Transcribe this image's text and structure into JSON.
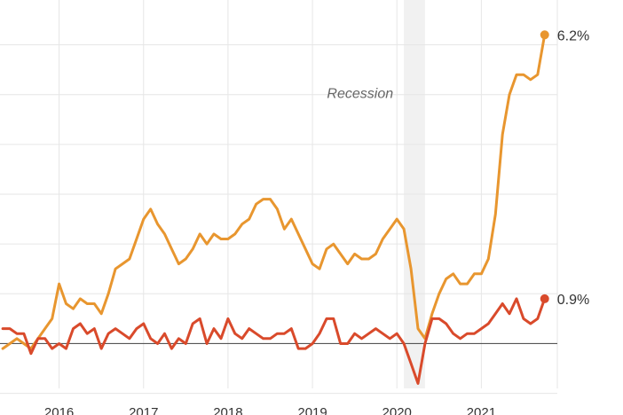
{
  "chart_data": {
    "type": "line",
    "title": "",
    "xlabel": "",
    "ylabel": "",
    "xlim": [
      2015.3,
      2021.9
    ],
    "ylim": [
      -0.9,
      6.9
    ],
    "x_ticks": [
      {
        "value": 2016,
        "label": "2016"
      },
      {
        "value": 2017,
        "label": "2017"
      },
      {
        "value": 2018,
        "label": "2018"
      },
      {
        "value": 2019,
        "label": "2019"
      },
      {
        "value": 2020,
        "label": "2020"
      },
      {
        "value": 2021,
        "label": "2021"
      }
    ],
    "grid": true,
    "baseline": 0,
    "recession": {
      "label": "Recession",
      "start": 2020.083,
      "end": 2020.333,
      "color": "#f1f1f1"
    },
    "series": [
      {
        "color": "#e8962f",
        "end_label": "6.2%",
        "points": [
          [
            2015.333,
            -0.1
          ],
          [
            2015.417,
            0.0
          ],
          [
            2015.5,
            0.1
          ],
          [
            2015.583,
            0.0
          ],
          [
            2015.667,
            -0.1
          ],
          [
            2015.75,
            0.1
          ],
          [
            2015.833,
            0.3
          ],
          [
            2015.917,
            0.5
          ],
          [
            2016.0,
            1.2
          ],
          [
            2016.083,
            0.8
          ],
          [
            2016.167,
            0.7
          ],
          [
            2016.25,
            0.9
          ],
          [
            2016.333,
            0.8
          ],
          [
            2016.417,
            0.8
          ],
          [
            2016.5,
            0.6
          ],
          [
            2016.583,
            1.0
          ],
          [
            2016.667,
            1.5
          ],
          [
            2016.75,
            1.6
          ],
          [
            2016.833,
            1.7
          ],
          [
            2016.917,
            2.1
          ],
          [
            2017.0,
            2.5
          ],
          [
            2017.083,
            2.7
          ],
          [
            2017.167,
            2.4
          ],
          [
            2017.25,
            2.2
          ],
          [
            2017.333,
            1.9
          ],
          [
            2017.417,
            1.6
          ],
          [
            2017.5,
            1.7
          ],
          [
            2017.583,
            1.9
          ],
          [
            2017.667,
            2.2
          ],
          [
            2017.75,
            2.0
          ],
          [
            2017.833,
            2.2
          ],
          [
            2017.917,
            2.1
          ],
          [
            2018.0,
            2.1
          ],
          [
            2018.083,
            2.2
          ],
          [
            2018.167,
            2.4
          ],
          [
            2018.25,
            2.5
          ],
          [
            2018.333,
            2.8
          ],
          [
            2018.417,
            2.9
          ],
          [
            2018.5,
            2.9
          ],
          [
            2018.583,
            2.7
          ],
          [
            2018.667,
            2.3
          ],
          [
            2018.75,
            2.5
          ],
          [
            2018.833,
            2.2
          ],
          [
            2018.917,
            1.9
          ],
          [
            2019.0,
            1.6
          ],
          [
            2019.083,
            1.5
          ],
          [
            2019.167,
            1.9
          ],
          [
            2019.25,
            2.0
          ],
          [
            2019.333,
            1.8
          ],
          [
            2019.417,
            1.6
          ],
          [
            2019.5,
            1.8
          ],
          [
            2019.583,
            1.7
          ],
          [
            2019.667,
            1.7
          ],
          [
            2019.75,
            1.8
          ],
          [
            2019.833,
            2.1
          ],
          [
            2019.917,
            2.3
          ],
          [
            2020.0,
            2.5
          ],
          [
            2020.083,
            2.3
          ],
          [
            2020.167,
            1.5
          ],
          [
            2020.25,
            0.3
          ],
          [
            2020.333,
            0.1
          ],
          [
            2020.417,
            0.6
          ],
          [
            2020.5,
            1.0
          ],
          [
            2020.583,
            1.3
          ],
          [
            2020.667,
            1.4
          ],
          [
            2020.75,
            1.2
          ],
          [
            2020.833,
            1.2
          ],
          [
            2020.917,
            1.4
          ],
          [
            2021.0,
            1.4
          ],
          [
            2021.083,
            1.7
          ],
          [
            2021.167,
            2.6
          ],
          [
            2021.25,
            4.2
          ],
          [
            2021.333,
            5.0
          ],
          [
            2021.417,
            5.4
          ],
          [
            2021.5,
            5.4
          ],
          [
            2021.583,
            5.3
          ],
          [
            2021.667,
            5.4
          ],
          [
            2021.75,
            6.2
          ]
        ]
      },
      {
        "color": "#d94a2b",
        "end_label": "0.9%",
        "points": [
          [
            2015.333,
            0.3
          ],
          [
            2015.417,
            0.3
          ],
          [
            2015.5,
            0.2
          ],
          [
            2015.583,
            0.2
          ],
          [
            2015.667,
            -0.2
          ],
          [
            2015.75,
            0.1
          ],
          [
            2015.833,
            0.1
          ],
          [
            2015.917,
            -0.1
          ],
          [
            2016.0,
            0.0
          ],
          [
            2016.083,
            -0.1
          ],
          [
            2016.167,
            0.3
          ],
          [
            2016.25,
            0.4
          ],
          [
            2016.333,
            0.2
          ],
          [
            2016.417,
            0.3
          ],
          [
            2016.5,
            -0.1
          ],
          [
            2016.583,
            0.2
          ],
          [
            2016.667,
            0.3
          ],
          [
            2016.75,
            0.2
          ],
          [
            2016.833,
            0.1
          ],
          [
            2016.917,
            0.3
          ],
          [
            2017.0,
            0.4
          ],
          [
            2017.083,
            0.1
          ],
          [
            2017.167,
            0.0
          ],
          [
            2017.25,
            0.2
          ],
          [
            2017.333,
            -0.1
          ],
          [
            2017.417,
            0.1
          ],
          [
            2017.5,
            0.0
          ],
          [
            2017.583,
            0.4
          ],
          [
            2017.667,
            0.5
          ],
          [
            2017.75,
            0.0
          ],
          [
            2017.833,
            0.3
          ],
          [
            2017.917,
            0.1
          ],
          [
            2018.0,
            0.5
          ],
          [
            2018.083,
            0.2
          ],
          [
            2018.167,
            0.1
          ],
          [
            2018.25,
            0.3
          ],
          [
            2018.333,
            0.2
          ],
          [
            2018.417,
            0.1
          ],
          [
            2018.5,
            0.1
          ],
          [
            2018.583,
            0.2
          ],
          [
            2018.667,
            0.2
          ],
          [
            2018.75,
            0.3
          ],
          [
            2018.833,
            -0.1
          ],
          [
            2018.917,
            -0.1
          ],
          [
            2019.0,
            0.0
          ],
          [
            2019.083,
            0.2
          ],
          [
            2019.167,
            0.5
          ],
          [
            2019.25,
            0.5
          ],
          [
            2019.333,
            0.0
          ],
          [
            2019.417,
            0.0
          ],
          [
            2019.5,
            0.2
          ],
          [
            2019.583,
            0.1
          ],
          [
            2019.667,
            0.2
          ],
          [
            2019.75,
            0.3
          ],
          [
            2019.833,
            0.2
          ],
          [
            2019.917,
            0.1
          ],
          [
            2020.0,
            0.2
          ],
          [
            2020.083,
            0.0
          ],
          [
            2020.167,
            -0.4
          ],
          [
            2020.25,
            -0.8
          ],
          [
            2020.333,
            0.0
          ],
          [
            2020.417,
            0.5
          ],
          [
            2020.5,
            0.5
          ],
          [
            2020.583,
            0.4
          ],
          [
            2020.667,
            0.2
          ],
          [
            2020.75,
            0.1
          ],
          [
            2020.833,
            0.2
          ],
          [
            2020.917,
            0.2
          ],
          [
            2021.0,
            0.3
          ],
          [
            2021.083,
            0.4
          ],
          [
            2021.167,
            0.6
          ],
          [
            2021.25,
            0.8
          ],
          [
            2021.333,
            0.6
          ],
          [
            2021.417,
            0.9
          ],
          [
            2021.5,
            0.5
          ],
          [
            2021.583,
            0.4
          ],
          [
            2021.667,
            0.5
          ],
          [
            2021.75,
            0.9
          ]
        ]
      }
    ]
  }
}
